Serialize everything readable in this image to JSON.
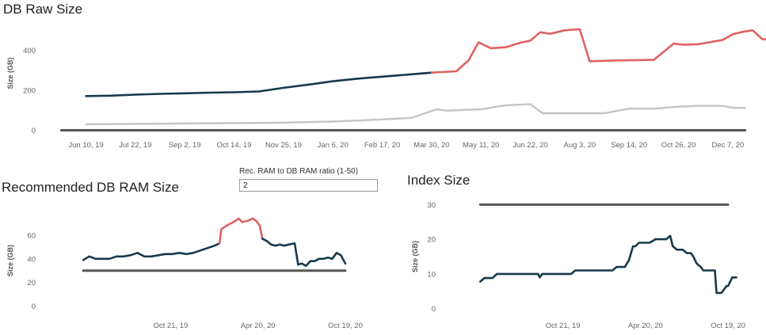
{
  "charts": {
    "raw": {
      "title": "DB Raw Size"
    },
    "ram": {
      "title": "Recommended DB RAM Size"
    },
    "index": {
      "title": "Index Size"
    }
  },
  "parameter": {
    "label": "Rec. RAM to DB RAM ratio (1-50)",
    "value": "2"
  },
  "colors": {
    "actual": "#17394a",
    "forecast": "#e06262",
    "reference": "#555555",
    "secondary": "#c4c4c4"
  },
  "chart_data": [
    {
      "type": "line",
      "title": "DB Raw Size",
      "ylabel": "Size (GB)",
      "ylim": [
        -10,
        580
      ],
      "yticks": [
        0,
        200,
        400
      ],
      "x_ticks": [
        "Jun 10, 19",
        "Jul 22, 19",
        "Sep 2, 19",
        "Oct 14, 19",
        "Nov 25, 19",
        "Jan 6, 20",
        "Feb 17, 20",
        "Mar 30, 20",
        "May 11, 20",
        "Jun 22, 20",
        "Aug 3, 20",
        "Sep 14, 20",
        "Oct 26, 20",
        "Dec 7, 20"
      ],
      "xlim": [
        -0.25,
        13.5
      ],
      "series": [
        {
          "role": "reference",
          "values": [
            [
              -0.5,
              0
            ],
            [
              13.35,
              0
            ]
          ]
        },
        {
          "role": "secondary",
          "values": [
            [
              0,
              30
            ],
            [
              1,
              32
            ],
            [
              2,
              34
            ],
            [
              3,
              36
            ],
            [
              4,
              38
            ],
            [
              5,
              44
            ],
            [
              6,
              54
            ],
            [
              6.6,
              62
            ],
            [
              7.1,
              105
            ],
            [
              7.3,
              98
            ],
            [
              8,
              105
            ],
            [
              8.5,
              125
            ],
            [
              9,
              130
            ],
            [
              9.25,
              85
            ],
            [
              10,
              85
            ],
            [
              10.5,
              85
            ],
            [
              11,
              108
            ],
            [
              11.5,
              108
            ],
            [
              12,
              118
            ],
            [
              12.4,
              122
            ],
            [
              12.9,
              122
            ],
            [
              13.1,
              112
            ],
            [
              13.35,
              112
            ]
          ]
        },
        {
          "role": "actual",
          "values": [
            [
              0,
              171
            ],
            [
              0.5,
              173
            ],
            [
              1,
              178
            ],
            [
              1.5,
              182
            ],
            [
              2,
              185
            ],
            [
              2.5,
              188
            ],
            [
              3,
              190
            ],
            [
              3.5,
              194
            ],
            [
              4,
              212
            ],
            [
              4.5,
              228
            ],
            [
              5,
              245
            ],
            [
              5.5,
              258
            ],
            [
              6,
              268
            ],
            [
              6.5,
              278
            ],
            [
              7,
              288
            ]
          ]
        },
        {
          "role": "forecast",
          "values": [
            [
              7,
              288
            ],
            [
              7.5,
              295
            ],
            [
              7.75,
              350
            ],
            [
              7.95,
              440
            ],
            [
              8.2,
              410
            ],
            [
              8.5,
              415
            ],
            [
              8.8,
              438
            ],
            [
              9,
              448
            ],
            [
              9.2,
              490
            ],
            [
              9.4,
              482
            ],
            [
              9.7,
              500
            ],
            [
              10,
              505
            ],
            [
              10.2,
              345
            ],
            [
              10.6,
              348
            ],
            [
              11,
              350
            ],
            [
              11.5,
              352
            ],
            [
              11.9,
              433
            ],
            [
              12.1,
              428
            ],
            [
              12.4,
              430
            ],
            [
              12.9,
              452
            ],
            [
              13.1,
              480
            ],
            [
              13.3,
              492
            ],
            [
              13.5,
              500
            ],
            [
              13.7,
              455
            ],
            [
              13.85,
              455
            ]
          ]
        }
      ]
    },
    {
      "type": "line",
      "title": "Recommended DB RAM Size",
      "ylabel": "Size (GB)",
      "ylim": [
        -5,
        82
      ],
      "yticks": [
        0,
        20,
        40,
        60
      ],
      "x_ticks": [
        "Oct 21, 19",
        "Apr 20, 20",
        "Oct 19, 20"
      ],
      "xlim": [
        -1.3,
        2.2
      ],
      "series": [
        {
          "role": "reference",
          "values": [
            [
              -1.0,
              30
            ],
            [
              2.0,
              30
            ]
          ]
        },
        {
          "role": "actual",
          "values": [
            [
              -1.0,
              39
            ],
            [
              -0.93,
              42
            ],
            [
              -0.86,
              40
            ],
            [
              -0.78,
              40
            ],
            [
              -0.7,
              40
            ],
            [
              -0.62,
              42
            ],
            [
              -0.54,
              42
            ],
            [
              -0.46,
              43
            ],
            [
              -0.38,
              45
            ],
            [
              -0.3,
              42
            ],
            [
              -0.22,
              42
            ],
            [
              -0.14,
              43
            ],
            [
              -0.06,
              44
            ],
            [
              0.02,
              44
            ],
            [
              0.1,
              45
            ],
            [
              0.18,
              44
            ],
            [
              0.26,
              45
            ],
            [
              0.34,
              47
            ],
            [
              0.42,
              49
            ],
            [
              0.5,
              51
            ],
            [
              0.56,
              53
            ]
          ]
        },
        {
          "role": "forecast",
          "values": [
            [
              0.56,
              53
            ],
            [
              0.58,
              65
            ],
            [
              0.64,
              68
            ],
            [
              0.72,
              71
            ],
            [
              0.78,
              74
            ],
            [
              0.82,
              71
            ],
            [
              0.88,
              72
            ],
            [
              0.94,
              74
            ],
            [
              0.98,
              72
            ],
            [
              1.02,
              68
            ],
            [
              1.05,
              57
            ]
          ]
        },
        {
          "role": "actual",
          "values": [
            [
              1.05,
              57
            ],
            [
              1.1,
              55
            ],
            [
              1.15,
              52
            ],
            [
              1.2,
              51
            ],
            [
              1.25,
              52
            ],
            [
              1.3,
              51
            ],
            [
              1.35,
              52
            ],
            [
              1.42,
              53
            ],
            [
              1.46,
              35
            ],
            [
              1.5,
              36
            ],
            [
              1.55,
              34
            ],
            [
              1.6,
              38
            ],
            [
              1.65,
              38
            ],
            [
              1.7,
              40
            ],
            [
              1.75,
              40
            ],
            [
              1.8,
              41
            ],
            [
              1.85,
              40
            ],
            [
              1.9,
              45
            ],
            [
              1.95,
              43
            ],
            [
              2.0,
              36
            ]
          ]
        }
      ]
    },
    {
      "type": "line",
      "title": "Index Size",
      "ylabel": "Size (GB)",
      "ylim": [
        -1,
        31
      ],
      "yticks": [
        0,
        10,
        20,
        30
      ],
      "x_ticks": [
        "Oct 21, 19",
        "Apr 20, 20",
        "Oct 19, 20"
      ],
      "xlim": [
        -1.3,
        2.2
      ],
      "series": [
        {
          "role": "reference",
          "values": [
            [
              -1.0,
              30
            ],
            [
              2.0,
              30
            ]
          ]
        },
        {
          "role": "actual",
          "values": [
            [
              -1.0,
              7.8
            ],
            [
              -0.95,
              8.8
            ],
            [
              -0.9,
              8.8
            ],
            [
              -0.85,
              8.8
            ],
            [
              -0.8,
              10
            ],
            [
              -0.7,
              10
            ],
            [
              -0.6,
              10
            ],
            [
              -0.5,
              10
            ],
            [
              -0.4,
              10
            ],
            [
              -0.3,
              10
            ],
            [
              -0.28,
              9
            ],
            [
              -0.25,
              10
            ],
            [
              -0.1,
              10
            ],
            [
              0.0,
              10
            ],
            [
              0.1,
              10
            ],
            [
              0.15,
              11
            ],
            [
              0.3,
              11
            ],
            [
              0.45,
              11
            ],
            [
              0.6,
              11
            ],
            [
              0.65,
              12
            ],
            [
              0.75,
              12
            ],
            [
              0.8,
              14
            ],
            [
              0.85,
              18
            ],
            [
              0.88,
              18
            ],
            [
              0.92,
              19
            ],
            [
              1.0,
              19
            ],
            [
              1.05,
              19
            ],
            [
              1.12,
              20
            ],
            [
              1.2,
              20
            ],
            [
              1.25,
              20
            ],
            [
              1.3,
              21
            ],
            [
              1.33,
              18
            ],
            [
              1.38,
              17
            ],
            [
              1.45,
              17
            ],
            [
              1.5,
              16
            ],
            [
              1.55,
              16
            ],
            [
              1.58,
              15
            ],
            [
              1.62,
              13
            ],
            [
              1.67,
              12
            ],
            [
              1.7,
              11
            ],
            [
              1.8,
              11
            ],
            [
              1.84,
              11
            ],
            [
              1.86,
              4.5
            ],
            [
              1.92,
              4.5
            ],
            [
              1.95,
              5.5
            ],
            [
              1.98,
              6.5
            ],
            [
              2.0,
              6.5
            ],
            [
              2.05,
              9
            ],
            [
              2.1,
              9
            ]
          ]
        }
      ]
    }
  ]
}
